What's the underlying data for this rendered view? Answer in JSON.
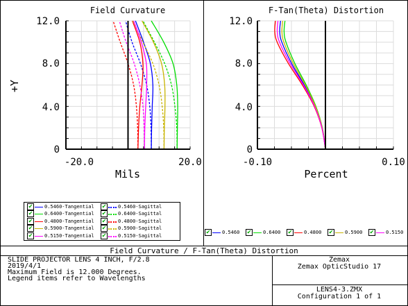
{
  "report": {
    "title": "Field Curvature / F-Tan(Theta) Distortion",
    "lens_title": "SLIDE PROJECTOR LENS 4 INCH, F/2.8",
    "date": "2019/4/1",
    "max_field": "Maximum Field is 12.000 Degrees.",
    "legend_note": "Legend items refer to Wavelengths",
    "company": "Zemax",
    "software": "Zemax OpticStudio 17",
    "file": "LENS4-3.ZMX",
    "configuration": "Configuration 1 of 1"
  },
  "colors": {
    "0.5460": "#0000ff",
    "0.6400": "#00dd00",
    "0.4800": "#ff0000",
    "0.5900": "#c8b400",
    "0.5150": "#ff00ff"
  },
  "legend_left": [
    {
      "label": "0.5460-Tangential",
      "wave": "0.5460",
      "style": "solid"
    },
    {
      "label": "0.5460-Sagittal",
      "wave": "0.5460",
      "style": "dashed"
    },
    {
      "label": "0.6400-Tangential",
      "wave": "0.6400",
      "style": "solid"
    },
    {
      "label": "0.6400-Sagittal",
      "wave": "0.6400",
      "style": "dashed"
    },
    {
      "label": "0.4800-Tangential",
      "wave": "0.4800",
      "style": "solid"
    },
    {
      "label": "0.4800-Sagittal",
      "wave": "0.4800",
      "style": "dashed"
    },
    {
      "label": "0.5900-Tangential",
      "wave": "0.5900",
      "style": "solid"
    },
    {
      "label": "0.5900-Sagittal",
      "wave": "0.5900",
      "style": "dashed"
    },
    {
      "label": "0.5150-Tangential",
      "wave": "0.5150",
      "style": "solid"
    },
    {
      "label": "0.5150-Sagittal",
      "wave": "0.5150",
      "style": "dashed"
    }
  ],
  "legend_right": [
    {
      "label": "0.5460",
      "wave": "0.5460"
    },
    {
      "label": "0.6400",
      "wave": "0.6400"
    },
    {
      "label": "0.4800",
      "wave": "0.4800"
    },
    {
      "label": "0.5900",
      "wave": "0.5900"
    },
    {
      "label": "0.5150",
      "wave": "0.5150"
    }
  ],
  "chart_data": [
    {
      "type": "line",
      "title": "Field Curvature",
      "xlabel": "Mils",
      "ylabel": "+Y",
      "xlim": [
        -20,
        20
      ],
      "ylim": [
        0,
        12
      ],
      "xticks": [
        "-20.0",
        "20.0"
      ],
      "yticks": [
        "0",
        "4.0",
        "8.0",
        "12.0"
      ],
      "grid": true,
      "y": [
        0,
        2,
        4,
        6,
        8,
        10,
        12
      ],
      "series": [
        {
          "name": "0.5460-Tangential",
          "wave": "0.5460",
          "style": "solid",
          "x": [
            7.5,
            7.6,
            7.8,
            8.0,
            7.2,
            5.0,
            2.4
          ]
        },
        {
          "name": "0.5460-Sagittal",
          "wave": "0.5460",
          "style": "dashed",
          "x": [
            7.5,
            7.4,
            7.0,
            6.0,
            4.0,
            1.3,
            -0.8
          ]
        },
        {
          "name": "0.6400-Tangential",
          "wave": "0.6400",
          "style": "solid",
          "x": [
            15.8,
            15.9,
            16.0,
            15.7,
            14.5,
            11.5,
            7.5
          ]
        },
        {
          "name": "0.6400-Sagittal",
          "wave": "0.6400",
          "style": "dashed",
          "x": [
            15.8,
            15.7,
            15.1,
            14.0,
            11.8,
            8.5,
            4.8
          ]
        },
        {
          "name": "0.4800-Tangential",
          "wave": "0.4800",
          "style": "solid",
          "x": [
            3.2,
            3.4,
            3.8,
            4.5,
            4.8,
            3.8,
            1.4
          ]
        },
        {
          "name": "0.4800-Sagittal",
          "wave": "0.4800",
          "style": "dashed",
          "x": [
            3.2,
            3.1,
            2.7,
            1.8,
            0.0,
            -2.5,
            -4.8
          ]
        },
        {
          "name": "0.5900-Tangential",
          "wave": "0.5900",
          "style": "solid",
          "x": [
            11.6,
            11.7,
            11.9,
            11.8,
            10.8,
            8.2,
            4.5
          ]
        },
        {
          "name": "0.5900-Sagittal",
          "wave": "0.5900",
          "style": "dashed",
          "x": [
            11.6,
            11.5,
            11.0,
            10.0,
            8.0,
            4.8,
            1.5
          ]
        },
        {
          "name": "0.5150-Tangential",
          "wave": "0.5150",
          "style": "solid",
          "x": [
            5.3,
            5.4,
            5.7,
            6.0,
            5.9,
            4.3,
            1.8
          ]
        },
        {
          "name": "0.5150-Sagittal",
          "wave": "0.5150",
          "style": "dashed",
          "x": [
            5.3,
            5.2,
            4.8,
            3.8,
            2.0,
            -0.6,
            -2.8
          ]
        }
      ]
    },
    {
      "type": "line",
      "title": "F-Tan(Theta) Distortion",
      "xlabel": "Percent",
      "xlim": [
        -0.1,
        0.1
      ],
      "ylim": [
        0,
        12
      ],
      "xticks": [
        "-0.10",
        "0.10"
      ],
      "yticks": [
        "0",
        "4.0",
        "8.0",
        "12.0"
      ],
      "grid": true,
      "y": [
        0,
        2,
        4,
        6,
        8,
        10,
        11,
        12
      ],
      "series": [
        {
          "name": "0.5460",
          "wave": "0.5460",
          "x": [
            0,
            -0.0049,
            -0.0153,
            -0.0312,
            -0.0496,
            -0.0641,
            -0.0672,
            -0.066
          ]
        },
        {
          "name": "0.6400",
          "wave": "0.6400",
          "x": [
            0,
            -0.0045,
            -0.014,
            -0.0283,
            -0.0449,
            -0.058,
            -0.0608,
            -0.0595
          ]
        },
        {
          "name": "0.4800",
          "wave": "0.4800",
          "x": [
            0,
            -0.0053,
            -0.0165,
            -0.0339,
            -0.0543,
            -0.0709,
            -0.0745,
            -0.0735
          ]
        },
        {
          "name": "0.5900",
          "wave": "0.5900",
          "x": [
            0,
            -0.0047,
            -0.0146,
            -0.0297,
            -0.0472,
            -0.0611,
            -0.064,
            -0.0628
          ]
        },
        {
          "name": "0.5150",
          "wave": "0.5150",
          "x": [
            0,
            -0.0051,
            -0.0159,
            -0.0324,
            -0.0518,
            -0.0675,
            -0.0709,
            -0.0698
          ]
        }
      ]
    }
  ]
}
